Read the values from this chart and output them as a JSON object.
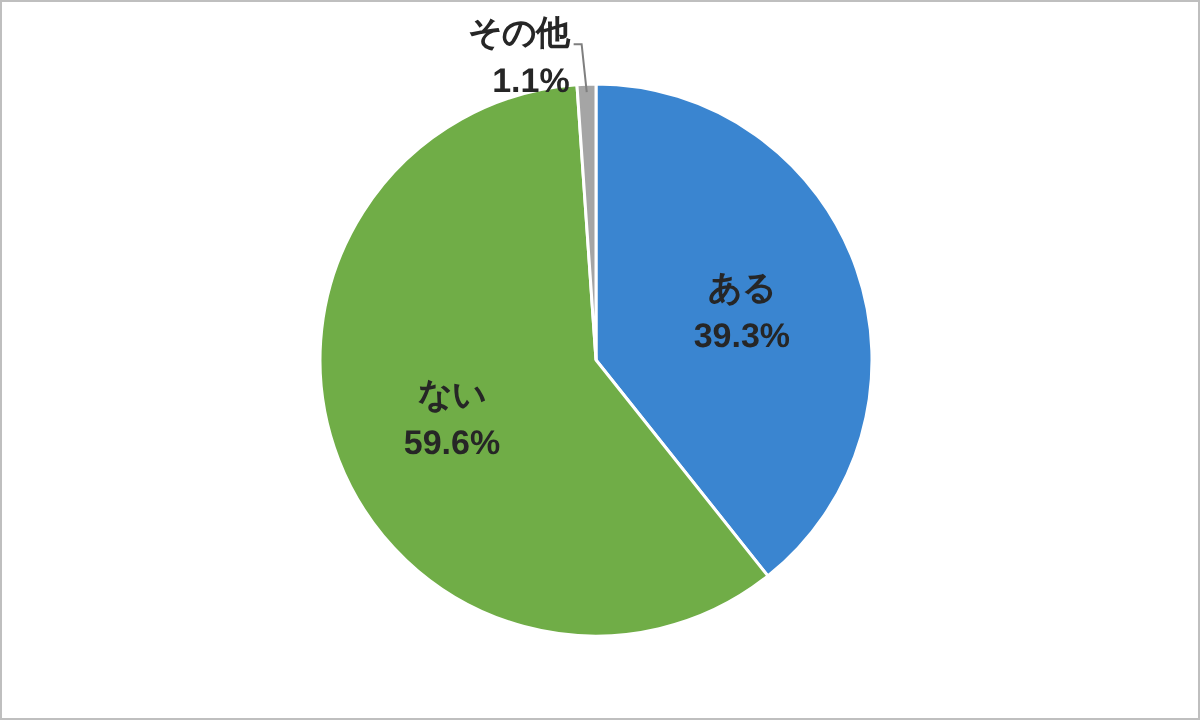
{
  "chart_data": {
    "type": "pie",
    "categories": [
      "ある",
      "ない",
      "その他"
    ],
    "values": [
      39.3,
      59.6,
      1.1
    ],
    "colors": [
      "#3a85d0",
      "#70ad47",
      "#a5a5a5"
    ],
    "value_labels": [
      "39.3%",
      "59.6%",
      "1.1%"
    ]
  }
}
